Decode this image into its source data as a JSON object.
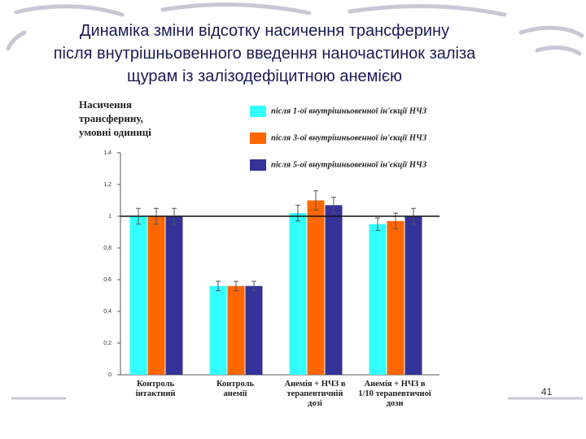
{
  "slide": {
    "title": "Динаміка зміни відсотку насичення трансферину\nпісля внутрішньовенного введення наночастинок заліза\nщурам із залізодефіцитною анемією",
    "page_number": "41"
  },
  "chart_data": {
    "type": "bar",
    "y_label": [
      "Насичення",
      "трансферину,",
      "умовні одиниці"
    ],
    "categories": [
      "Контроль\nінтактний",
      "Контроль\nанемії",
      "Анемія + НЧЗ в\nтерапевтичній\nдозі",
      "Анемія + НЧЗ в\n1/10 терапевтичної\nдози"
    ],
    "series": [
      {
        "name": "після 1-ої внутрішньовенної ін'єкції НЧЗ",
        "color": "#33ffff",
        "values": [
          1.0,
          0.56,
          1.02,
          0.95
        ],
        "errors": [
          0.05,
          0.03,
          0.05,
          0.04
        ]
      },
      {
        "name": "після 3-ої внутрішньовенної ін'єкції НЧЗ",
        "color": "#ff6600",
        "values": [
          1.0,
          0.56,
          1.1,
          0.97
        ],
        "errors": [
          0.05,
          0.03,
          0.06,
          0.05
        ]
      },
      {
        "name": "після 5-ої внутрішньовенної ін'єкції НЧЗ",
        "color": "#333399",
        "values": [
          1.0,
          0.56,
          1.07,
          1.0
        ],
        "errors": [
          0.05,
          0.03,
          0.05,
          0.05
        ]
      }
    ],
    "reference_line": 1,
    "ylim": [
      0,
      1.4
    ],
    "yticks": [
      0,
      {
        "value": 0.2,
        "label": "0,2"
      },
      {
        "value": 0.4,
        "label": "0,4"
      },
      {
        "value": 0.6,
        "label": "0,6"
      },
      {
        "value": 0.8,
        "label": "0,8"
      },
      1,
      {
        "value": 1.2,
        "label": "1,2"
      },
      {
        "value": 1.4,
        "label": "1,4"
      }
    ]
  }
}
